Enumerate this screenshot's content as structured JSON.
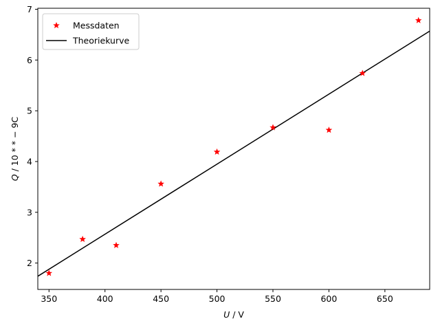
{
  "chart_data": {
    "type": "scatter",
    "xlabel_var": "U",
    "xlabel_unit": " / V",
    "ylabel_var": "Q",
    "ylabel_unit": " / 10 * * − 9C",
    "xlim": [
      340,
      690
    ],
    "ylim": [
      1.48,
      7.02
    ],
    "xticks": [
      350,
      400,
      450,
      500,
      550,
      600,
      650
    ],
    "yticks": [
      2,
      3,
      4,
      5,
      6,
      7
    ],
    "legend_position": "upper-left",
    "series": [
      {
        "name": "Messdaten",
        "kind": "points",
        "marker": "star",
        "color": "#ff0000",
        "x": [
          350,
          380,
          410,
          450,
          500,
          550,
          600,
          630,
          680
        ],
        "y": [
          1.8,
          2.47,
          2.35,
          3.56,
          4.19,
          4.67,
          4.62,
          5.74,
          6.78
        ]
      },
      {
        "name": "Theoriekurve",
        "kind": "line",
        "color": "#000000",
        "x": [
          340,
          690
        ],
        "y": [
          1.74,
          6.57
        ]
      }
    ],
    "grid": false
  }
}
